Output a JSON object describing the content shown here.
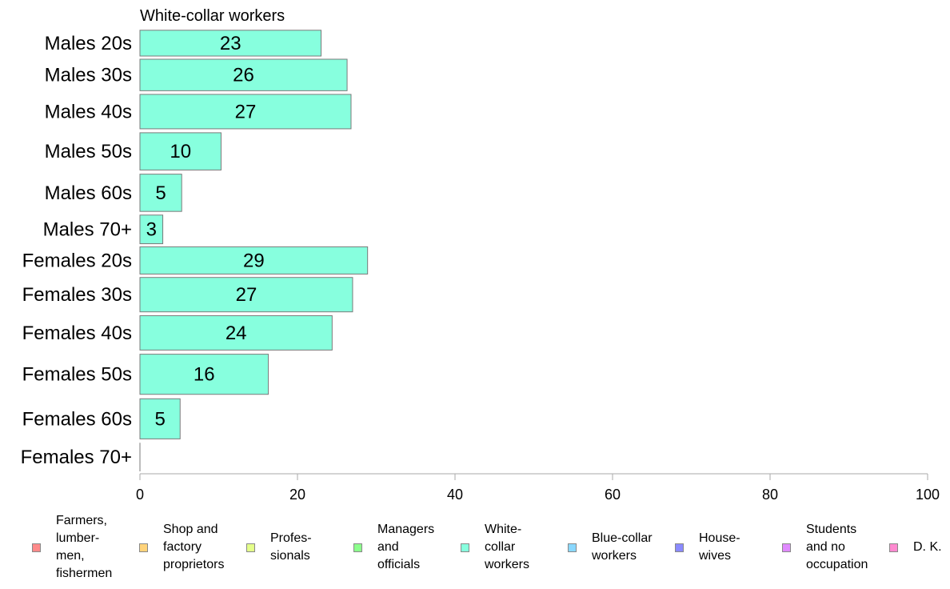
{
  "chart_data": {
    "type": "bar",
    "orientation": "horizontal",
    "title": "White-collar workers",
    "categories": [
      "Males 20s",
      "Males 30s",
      "Males 40s",
      "Males 50s",
      "Males 60s",
      "Males 70+",
      "Females 20s",
      "Females 30s",
      "Females 40s",
      "Females 50s",
      "Females 60s",
      "Females 70+"
    ],
    "values": [
      23,
      26.3,
      26.8,
      10.3,
      5.3,
      2.9,
      28.9,
      27,
      24.4,
      16.3,
      5.1,
      0
    ],
    "value_labels": [
      "23",
      "26",
      "27",
      "10",
      "5",
      "3",
      "29",
      "27",
      "24",
      "16",
      "5",
      ""
    ],
    "bar_weights": [
      0.9,
      1.1,
      1.2,
      1.3,
      1.3,
      1.0,
      0.95,
      1.2,
      1.2,
      1.4,
      1.4,
      1.0
    ],
    "xlim": [
      0,
      100
    ],
    "xticks": [
      0,
      20,
      40,
      60,
      80,
      100
    ],
    "grid": false,
    "bar_color": "#87ffde",
    "legend_position": "bottom",
    "legend": [
      {
        "label": "Farmers,\nlumber-\nmen,\nfishermen",
        "color": "#ff8a8a"
      },
      {
        "label": "Shop and\nfactory\nproprietors",
        "color": "#ffd37a"
      },
      {
        "label": "Profes-\nsionals",
        "color": "#e4ff8a"
      },
      {
        "label": "Managers\nand\nofficials",
        "color": "#8cff8c"
      },
      {
        "label": "White-\ncollar\nworkers",
        "color": "#87ffde"
      },
      {
        "label": "Blue-collar\nworkers",
        "color": "#8ad8ff"
      },
      {
        "label": "House-\nwives",
        "color": "#8a8aff"
      },
      {
        "label": "Students\nand no\noccupation",
        "color": "#e08aff"
      },
      {
        "label": "D. K.",
        "color": "#ff8ad0"
      }
    ]
  }
}
